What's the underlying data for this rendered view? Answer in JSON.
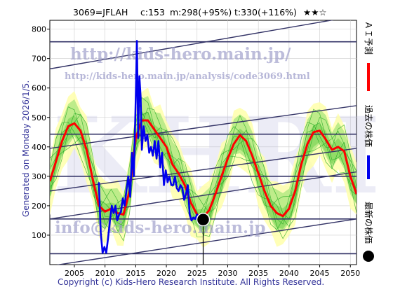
{
  "header": {
    "code": "3069=JFLAH",
    "current": "c:153",
    "medium": "m:298(+95%)",
    "target": "t:330(+116%)",
    "stars": "★★☆"
  },
  "side_label": "Generated on Monday 2026/1/5.",
  "copyright": "Copyright (c) Kids-Hero Research Institute. All Rights Reserved.",
  "watermarks": {
    "url_main": "http://kids-hero.main.jp/",
    "url_sub": "http://kids-hero.main.jp/analysis/code3069.html",
    "mail": "info@kids-hero.main.jp",
    "logo": "KHRI"
  },
  "legend": {
    "ai": "ＡＩ予測",
    "past": "過去の株価",
    "latest": "最新の株価"
  },
  "colors": {
    "ai": "#ff0000",
    "past": "#0000ee",
    "latest": "#000000",
    "band_outer": "#ffffaa",
    "band_inner": "#88dd66",
    "lines": "#333366"
  },
  "chart_data": {
    "type": "line",
    "x_unit": "year",
    "xlim": [
      2001,
      2051
    ],
    "ylim": [
      0,
      830
    ],
    "x_ticks": [
      2005,
      2010,
      2015,
      2020,
      2025,
      2030,
      2035,
      2040,
      2045,
      2050
    ],
    "y_ticks": [
      100,
      200,
      300,
      400,
      500,
      600,
      700,
      800
    ],
    "grid": true,
    "latest_point": {
      "x": 2026.0,
      "y": 153
    },
    "horizontal_lines": [
      37,
      155,
      300,
      443,
      757
    ],
    "trend_lines": [
      {
        "x": [
          2001,
          2051
        ],
        "y": [
          -5,
          155
        ]
      },
      {
        "x": [
          2001,
          2051
        ],
        "y": [
          155,
          315
        ]
      },
      {
        "x": [
          2001,
          2051
        ],
        "y": [
          250,
          395
        ]
      },
      {
        "x": [
          2001,
          2051
        ],
        "y": [
          395,
          540
        ]
      },
      {
        "x": [
          2001,
          2051
        ],
        "y": [
          665,
          845
        ]
      }
    ],
    "series": [
      {
        "name": "ＡＩ予測",
        "x": [
          2001,
          2002,
          2003,
          2004,
          2005,
          2006,
          2007,
          2008,
          2009,
          2010,
          2011,
          2012,
          2013,
          2014,
          2015,
          2016,
          2017,
          2018,
          2019,
          2020,
          2021,
          2022,
          2023,
          2024,
          2025,
          2026,
          2027,
          2028,
          2029,
          2030,
          2031,
          2032,
          2033,
          2034,
          2035,
          2036,
          2037,
          2038,
          2039,
          2040,
          2041,
          2042,
          2043,
          2044,
          2045,
          2046,
          2047,
          2048,
          2049,
          2050,
          2051
        ],
        "y": [
          283,
          350,
          420,
          470,
          480,
          455,
          390,
          290,
          200,
          180,
          190,
          175,
          170,
          250,
          430,
          490,
          490,
          460,
          430,
          400,
          340,
          310,
          270,
          210,
          170,
          160,
          185,
          240,
          300,
          360,
          410,
          440,
          420,
          370,
          310,
          250,
          200,
          175,
          165,
          190,
          250,
          340,
          410,
          450,
          455,
          425,
          390,
          400,
          385,
          300,
          240
        ]
      },
      {
        "name": "過去の株価",
        "x": [
          2009.0,
          2009.3,
          2009.6,
          2009.9,
          2010.2,
          2010.5,
          2010.8,
          2011.1,
          2011.4,
          2011.7,
          2012.0,
          2012.3,
          2012.6,
          2012.9,
          2013.2,
          2013.5,
          2013.8,
          2014.1,
          2014.4,
          2014.7,
          2015.0,
          2015.2,
          2015.4,
          2015.6,
          2015.8,
          2016.0,
          2016.3,
          2016.6,
          2016.9,
          2017.2,
          2017.5,
          2017.8,
          2018.1,
          2018.4,
          2018.7,
          2019.0,
          2019.3,
          2019.6,
          2019.9,
          2020.2,
          2020.5,
          2020.8,
          2021.1,
          2021.4,
          2021.7,
          2022.0,
          2022.3,
          2022.6,
          2022.9,
          2023.2,
          2023.5,
          2023.8,
          2024.1,
          2024.4,
          2024.7,
          2025.0,
          2025.3,
          2025.6
        ],
        "y": [
          280,
          110,
          40,
          60,
          40,
          90,
          150,
          200,
          175,
          200,
          150,
          170,
          180,
          225,
          200,
          255,
          300,
          230,
          380,
          300,
          560,
          760,
          430,
          640,
          570,
          390,
          470,
          420,
          440,
          380,
          400,
          370,
          420,
          360,
          420,
          330,
          380,
          270,
          320,
          280,
          300,
          270,
          270,
          300,
          260,
          250,
          270,
          260,
          220,
          240,
          270,
          170,
          150,
          160,
          155,
          170,
          158,
          153
        ]
      }
    ]
  }
}
